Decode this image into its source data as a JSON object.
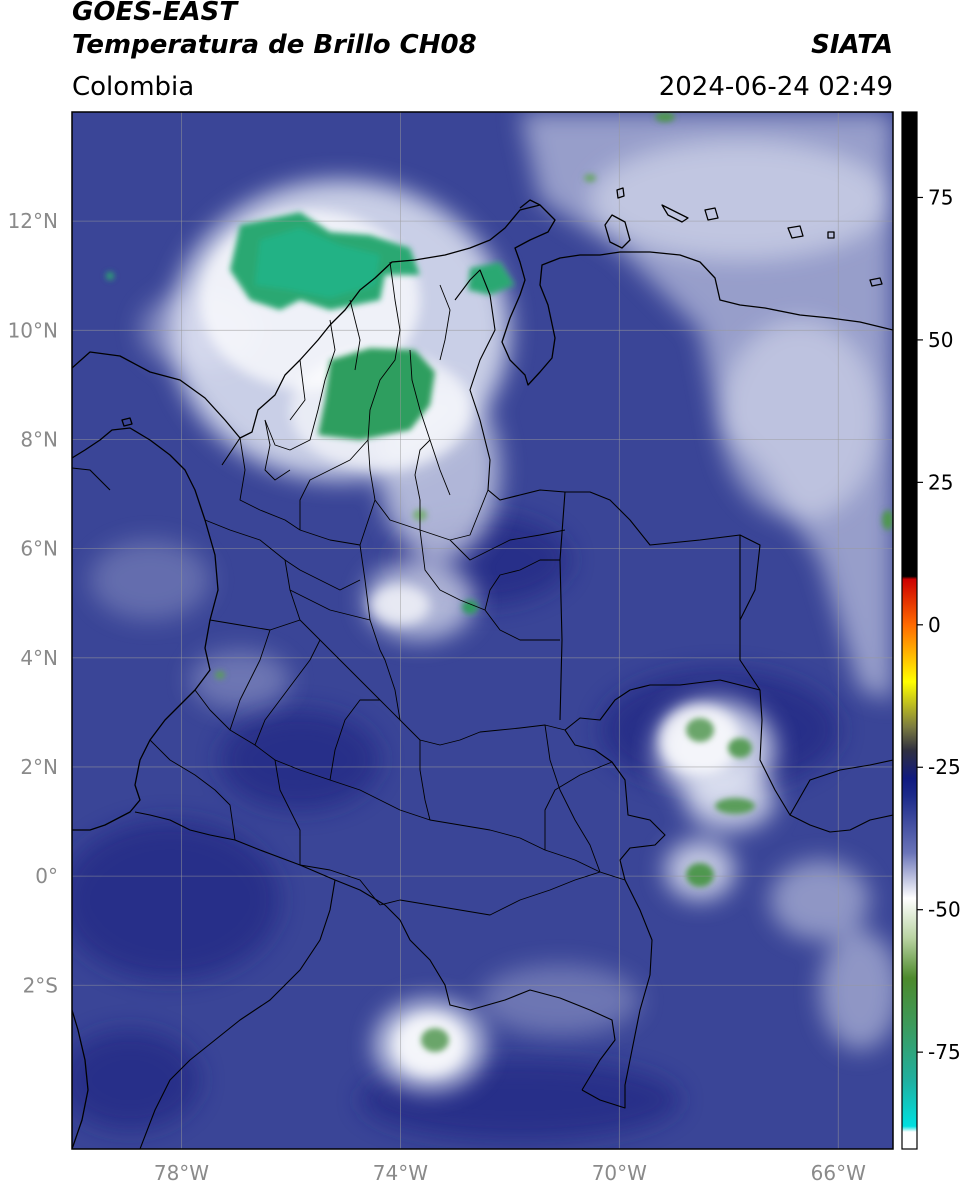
{
  "header": {
    "satellite": "GOES-EAST",
    "product": "Temperatura de Brillo CH08",
    "agency": "SIATA",
    "region": "Colombia",
    "datetime": "2024-06-24 02:49"
  },
  "map": {
    "extent": {
      "lon": [
        -80,
        -65
      ],
      "lat": [
        -5,
        14
      ]
    },
    "lon_ticks": [
      {
        "v": -78,
        "label": "78°W"
      },
      {
        "v": -74,
        "label": "74°W"
      },
      {
        "v": -70,
        "label": "70°W"
      },
      {
        "v": -66,
        "label": "66°W"
      }
    ],
    "lat_ticks": [
      {
        "v": 12,
        "label": "12°N"
      },
      {
        "v": 10,
        "label": "10°N"
      },
      {
        "v": 8,
        "label": "8°N"
      },
      {
        "v": 6,
        "label": "6°N"
      },
      {
        "v": 4,
        "label": "4°N"
      },
      {
        "v": 2,
        "label": "2°N"
      },
      {
        "v": 0,
        "label": "0°"
      },
      {
        "v": -2,
        "label": "2°S"
      }
    ],
    "colors": {
      "background": "#3a4597",
      "cloud": "#dfe4f2",
      "cold_top": "#2aa872",
      "coast": "#000000"
    }
  },
  "colorbar": {
    "range": [
      -92,
      90
    ],
    "ticks": [
      {
        "v": 75,
        "label": "75"
      },
      {
        "v": 50,
        "label": "50"
      },
      {
        "v": 25,
        "label": "25"
      },
      {
        "v": 0,
        "label": "0"
      },
      {
        "v": -25,
        "label": "-25"
      },
      {
        "v": -50,
        "label": "-50"
      },
      {
        "v": -75,
        "label": "-75"
      }
    ],
    "stops": [
      {
        "v": 90,
        "c": "#000000"
      },
      {
        "v": 8.5,
        "c": "#000000"
      },
      {
        "v": 8,
        "c": "#cc0000"
      },
      {
        "v": 0,
        "c": "#ff6a00"
      },
      {
        "v": -10,
        "c": "#ffff00"
      },
      {
        "v": -18,
        "c": "#7a7a40"
      },
      {
        "v": -22,
        "c": "#303040"
      },
      {
        "v": -27,
        "c": "#101a80"
      },
      {
        "v": -30,
        "c": "#1c2a8a"
      },
      {
        "v": -40,
        "c": "#6a74b8"
      },
      {
        "v": -48,
        "c": "#ffffff"
      },
      {
        "v": -55,
        "c": "#b9d3a2"
      },
      {
        "v": -62,
        "c": "#4d8a2c"
      },
      {
        "v": -70,
        "c": "#3d9a5a"
      },
      {
        "v": -80,
        "c": "#20b0a0"
      },
      {
        "v": -88,
        "c": "#00e0e0"
      },
      {
        "v": -89,
        "c": "#ffffff"
      },
      {
        "v": -92,
        "c": "#ffffff"
      }
    ]
  }
}
